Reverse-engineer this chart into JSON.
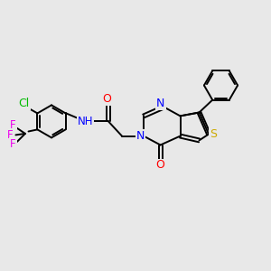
{
  "background_color": "#e8e8e8",
  "bond_color": "#000000",
  "atom_colors": {
    "N": "#0000ff",
    "O": "#ff0000",
    "S": "#ccaa00",
    "Cl": "#00bb00",
    "F": "#ee00ee",
    "C": "#000000",
    "H": "#000000"
  },
  "figsize": [
    3.0,
    3.0
  ],
  "dpi": 100
}
